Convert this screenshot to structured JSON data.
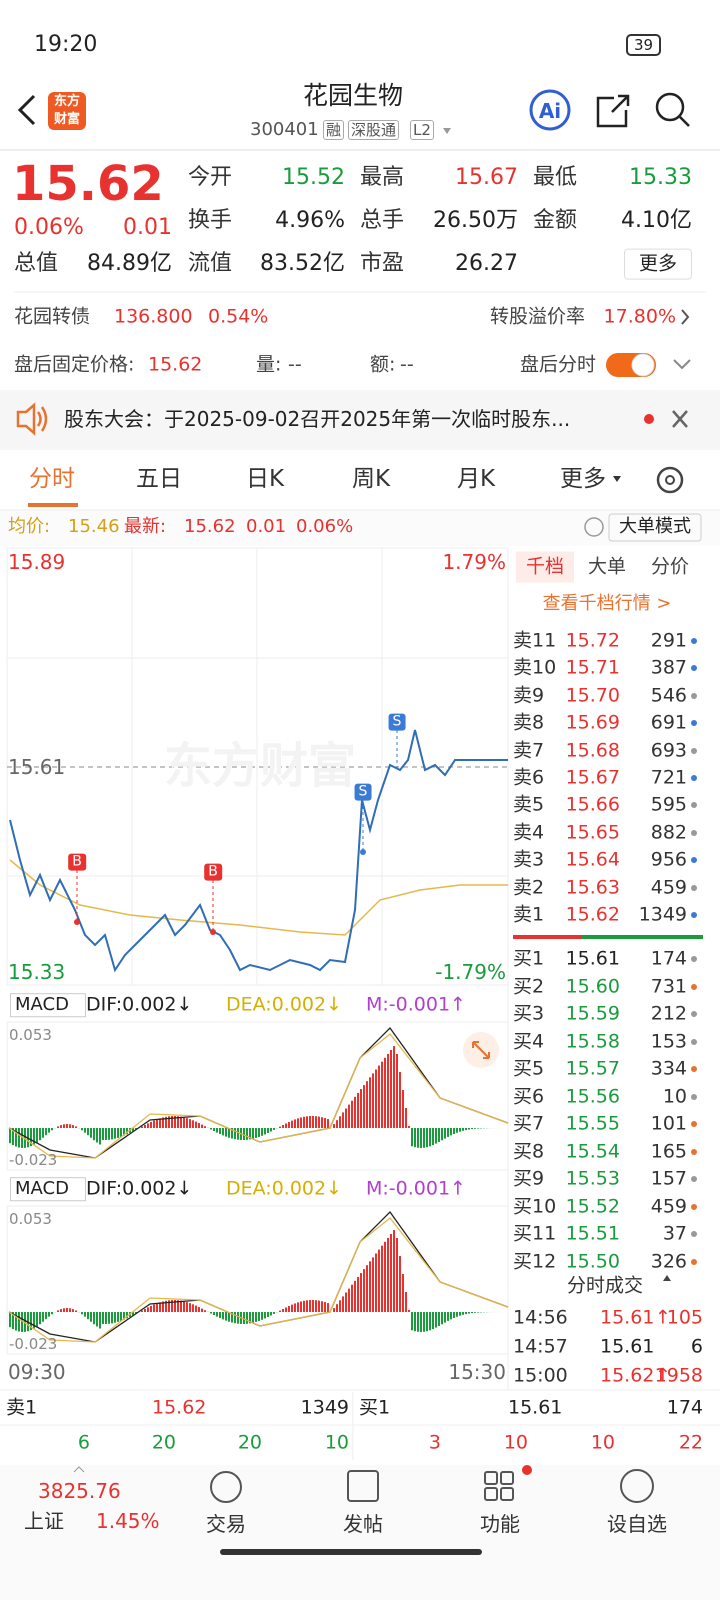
{
  "status": {
    "time": "19:20",
    "battery": "39"
  },
  "header": {
    "logo": [
      "东方",
      "财富"
    ],
    "title": "花园生物",
    "code": "300401",
    "tags": [
      "融",
      "深股通",
      "L2"
    ]
  },
  "quote": {
    "price": "15.62",
    "pct": "0.06%",
    "change": "0.01",
    "more": "更多",
    "fields": [
      {
        "label": "今开",
        "value": "15.52",
        "color": "#1a9b3c"
      },
      {
        "label": "最高",
        "value": "15.67",
        "color": "#e8322f"
      },
      {
        "label": "最低",
        "value": "15.33",
        "color": "#1a9b3c"
      },
      {
        "label": "换手",
        "value": "4.96%",
        "color": "#222222"
      },
      {
        "label": "总手",
        "value": "26.50万",
        "color": "#222222"
      },
      {
        "label": "金额",
        "value": "4.10亿",
        "color": "#222222"
      },
      {
        "label": "总值",
        "value": "84.89亿",
        "color": "#222222"
      },
      {
        "label": "流值",
        "value": "83.52亿",
        "color": "#222222"
      },
      {
        "label": "市盈",
        "value": "26.27",
        "color": "#222222"
      }
    ]
  },
  "bond": {
    "name": "花园转债",
    "price": "136.800",
    "pct": "0.54%",
    "premium_label": "转股溢价率",
    "premium": "17.80%"
  },
  "after_hours": {
    "label": "盘后固定价格:",
    "price": "15.62",
    "volume_label": "量:",
    "volume": "--",
    "amount_label": "额:",
    "amount": "--",
    "toggle_label": "盘后分时"
  },
  "notice": "股东大会：于2025-09-02召开2025年第一次临时股东...",
  "tabs": [
    "分时",
    "五日",
    "日K",
    "周K",
    "月K",
    "更多"
  ],
  "info": {
    "avg_label": "均价:",
    "avg": "15.46",
    "latest_label": "最新:",
    "latest": "15.62",
    "change": "0.01",
    "pct": "0.06%",
    "mode": "大单模式"
  },
  "chart": {
    "watermark": "东方财富",
    "ymax": "15.89",
    "ymin": "15.33",
    "pmax": "1.79%",
    "pmin": "-1.79%",
    "ref": "15.61",
    "xstart": "09:30",
    "xend": "15:30",
    "markers": [
      "B",
      "B",
      "S",
      "S"
    ]
  },
  "macd": [
    {
      "name": "MACD",
      "dif": "DIF:0.002↓",
      "dea": "DEA:0.002↓",
      "m": "M:-0.001↑",
      "top": "0.053",
      "bottom": "-0.023"
    },
    {
      "name": "MACD",
      "dif": "DIF:0.002↓",
      "dea": "DEA:0.002↓",
      "m": "M:-0.001↑",
      "top": "0.053",
      "bottom": "-0.023"
    }
  ],
  "book": {
    "tabs": [
      "千档",
      "大单",
      "分价"
    ],
    "link": "查看千档行情 >",
    "sells": [
      {
        "label": "卖11",
        "price": "15.72",
        "volume": "291",
        "dot": "#3a7bd5"
      },
      {
        "label": "卖10",
        "price": "15.71",
        "volume": "387",
        "dot": "#3a7bd5"
      },
      {
        "label": "卖9",
        "price": "15.70",
        "volume": "546",
        "dot": "#999999"
      },
      {
        "label": "卖8",
        "price": "15.69",
        "volume": "691",
        "dot": "#3a7bd5"
      },
      {
        "label": "卖7",
        "price": "15.68",
        "volume": "693",
        "dot": "#999999"
      },
      {
        "label": "卖6",
        "price": "15.67",
        "volume": "721",
        "dot": "#3a7bd5"
      },
      {
        "label": "卖5",
        "price": "15.66",
        "volume": "595",
        "dot": "#999999"
      },
      {
        "label": "卖4",
        "price": "15.65",
        "volume": "882",
        "dot": "#999999"
      },
      {
        "label": "卖3",
        "price": "15.64",
        "volume": "956",
        "dot": "#3a7bd5"
      },
      {
        "label": "卖2",
        "price": "15.63",
        "volume": "459",
        "dot": "#999999"
      },
      {
        "label": "卖1",
        "price": "15.62",
        "volume": "1349",
        "dot": "#3a7bd5"
      }
    ],
    "buys": [
      {
        "label": "买1",
        "price": "15.61",
        "volume": "174",
        "dot": "#999999"
      },
      {
        "label": "买2",
        "price": "15.60",
        "volume": "731",
        "dot": "#e8722f"
      },
      {
        "label": "买3",
        "price": "15.59",
        "volume": "212",
        "dot": "#999999"
      },
      {
        "label": "买4",
        "price": "15.58",
        "volume": "153",
        "dot": "#999999"
      },
      {
        "label": "买5",
        "price": "15.57",
        "volume": "334",
        "dot": "#e8722f"
      },
      {
        "label": "买6",
        "price": "15.56",
        "volume": "10",
        "dot": "#999999"
      },
      {
        "label": "买7",
        "price": "15.55",
        "volume": "101",
        "dot": "#e8722f"
      },
      {
        "label": "买8",
        "price": "15.54",
        "volume": "165",
        "dot": "#e8722f"
      },
      {
        "label": "买9",
        "price": "15.53",
        "volume": "157",
        "dot": "#999999"
      },
      {
        "label": "买10",
        "price": "15.52",
        "volume": "459",
        "dot": "#e8722f"
      },
      {
        "label": "买11",
        "price": "15.51",
        "volume": "37",
        "dot": "#999999"
      },
      {
        "label": "买12",
        "price": "15.50",
        "volume": "326",
        "dot": "#e8722f"
      }
    ],
    "trades_title": "分时成交",
    "trades": [
      {
        "time": "14:56",
        "price": "15.61",
        "dir": "↑",
        "volume": "105"
      },
      {
        "time": "14:57",
        "price": "15.61",
        "volume": "6"
      },
      {
        "time": "15:00",
        "price": "15.62",
        "dir": "↑",
        "volume": "1958"
      }
    ]
  },
  "level1": {
    "sell_label": "卖1",
    "sell_price": "15.62",
    "sell_volume": "1349",
    "buy_label": "买1",
    "buy_price": "15.61",
    "buy_volume": "174",
    "counts": [
      {
        "value": "6",
        "color": "#1a9b3c"
      },
      {
        "value": "20",
        "color": "#1a9b3c"
      },
      {
        "value": "20",
        "color": "#1a9b3c"
      },
      {
        "value": "10",
        "color": "#1a9b3c"
      },
      {
        "value": "3",
        "color": "#e8322f"
      },
      {
        "value": "10",
        "color": "#e8322f"
      },
      {
        "value": "10",
        "color": "#e8322f"
      },
      {
        "value": "22",
        "color": "#e8322f"
      }
    ]
  },
  "nav": {
    "index_value": "3825.76",
    "index_name": "上证",
    "index_pct": "1.45%",
    "items": [
      "交易",
      "发帖",
      "功能",
      "设自选"
    ]
  }
}
